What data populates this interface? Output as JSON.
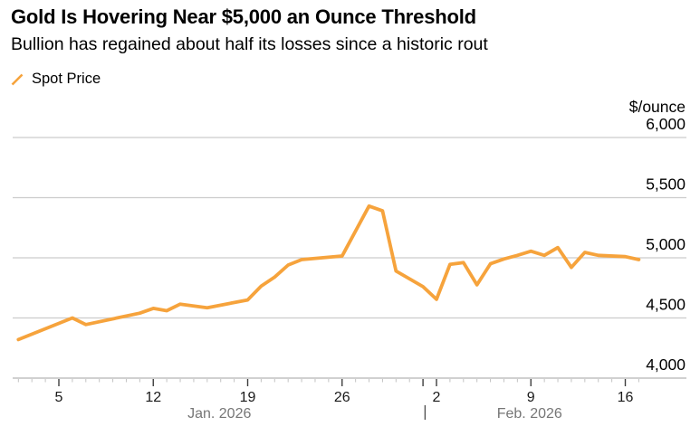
{
  "header": {
    "title": "Gold Is Hovering Near $5,000 an Ounce Threshold",
    "subtitle": "Bullion has regained about half its losses since a historic rout"
  },
  "legend": {
    "label": "Spot Price"
  },
  "colors": {
    "line": "#F6A33C",
    "grid": "#CCCCCC",
    "axis": "#B5B5B5",
    "tick_minor": "#C2C2C2",
    "tick_major": "#3D3D3D",
    "tick_label": "#1A1A1A",
    "y_label": "#000000",
    "month_label": "#767676",
    "separator": "#3D3D3D"
  },
  "chart_data": {
    "type": "line",
    "title": "Gold Is Hovering Near $5,000 an Ounce Threshold",
    "subtitle": "Bullion has regained about half its losses since a historic rout",
    "unit_label": "$/ounce",
    "grid": true,
    "legend_position": "top-left",
    "y_axis": {
      "min": 4000,
      "max": 6000,
      "tick_step": 500,
      "ticks": [
        {
          "value": 4000,
          "label": "4,000"
        },
        {
          "value": 4500,
          "label": "4,500"
        },
        {
          "value": 5000,
          "label": "5,000"
        },
        {
          "value": 5500,
          "label": "5,500"
        },
        {
          "value": 6000,
          "label": "6,000"
        }
      ]
    },
    "x_axis": {
      "note_day_index": "day 1 = Jan 1 2026, day 32 = Feb 1 2026",
      "minor_tick_day_range": {
        "from": 2,
        "to": 48
      },
      "major_ticks": [
        {
          "day": 5,
          "label": "5"
        },
        {
          "day": 12,
          "label": "12"
        },
        {
          "day": 19,
          "label": "19"
        },
        {
          "day": 26,
          "label": "26"
        },
        {
          "day": 32,
          "label": ""
        },
        {
          "day": 33,
          "label": "2"
        },
        {
          "day": 40,
          "label": "9"
        },
        {
          "day": 47,
          "label": "16"
        }
      ],
      "months": [
        {
          "label": "Jan. 2026",
          "center_day": 16.9
        },
        {
          "label": "Feb. 2026",
          "center_day": 39.9
        }
      ],
      "month_separator_day": 32.15
    },
    "series": [
      {
        "name": "Spot Price",
        "color": "#F6A33C",
        "points": [
          {
            "date": "Jan 2",
            "day": 2,
            "value": 4320
          },
          {
            "date": "Jan 6",
            "day": 6,
            "value": 4500
          },
          {
            "date": "Jan 7",
            "day": 7,
            "value": 4445
          },
          {
            "date": "Jan 11",
            "day": 11,
            "value": 4540
          },
          {
            "date": "Jan 12",
            "day": 12,
            "value": 4580
          },
          {
            "date": "Jan 13",
            "day": 13,
            "value": 4560
          },
          {
            "date": "Jan 14",
            "day": 14,
            "value": 4615
          },
          {
            "date": "Jan 16",
            "day": 16,
            "value": 4585
          },
          {
            "date": "Jan 19",
            "day": 19,
            "value": 4650
          },
          {
            "date": "Jan 20",
            "day": 20,
            "value": 4765
          },
          {
            "date": "Jan 21",
            "day": 21,
            "value": 4840
          },
          {
            "date": "Jan 22",
            "day": 22,
            "value": 4940
          },
          {
            "date": "Jan 23",
            "day": 23,
            "value": 4985
          },
          {
            "date": "Jan 26",
            "day": 26,
            "value": 5015
          },
          {
            "date": "Jan 28",
            "day": 28,
            "value": 5430
          },
          {
            "date": "Jan 29",
            "day": 29,
            "value": 5390
          },
          {
            "date": "Jan 30",
            "day": 30,
            "value": 4890
          },
          {
            "date": "Feb 1",
            "day": 32,
            "value": 4760
          },
          {
            "date": "Feb 2",
            "day": 33,
            "value": 4655
          },
          {
            "date": "Feb 3",
            "day": 34,
            "value": 4945
          },
          {
            "date": "Feb 4",
            "day": 35,
            "value": 4960
          },
          {
            "date": "Feb 5",
            "day": 36,
            "value": 4775
          },
          {
            "date": "Feb 6",
            "day": 37,
            "value": 4950
          },
          {
            "date": "Feb 7",
            "day": 38,
            "value": 4990
          },
          {
            "date": "Feb 8",
            "day": 39,
            "value": 5020
          },
          {
            "date": "Feb 9",
            "day": 40,
            "value": 5055
          },
          {
            "date": "Feb 10",
            "day": 41,
            "value": 5020
          },
          {
            "date": "Feb 11",
            "day": 42,
            "value": 5085
          },
          {
            "date": "Feb 12",
            "day": 43,
            "value": 4920
          },
          {
            "date": "Feb 13",
            "day": 44,
            "value": 5045
          },
          {
            "date": "Feb 14",
            "day": 45,
            "value": 5020
          },
          {
            "date": "Feb 16",
            "day": 47,
            "value": 5010
          },
          {
            "date": "Feb 17",
            "day": 48,
            "value": 4985
          }
        ]
      }
    ]
  }
}
